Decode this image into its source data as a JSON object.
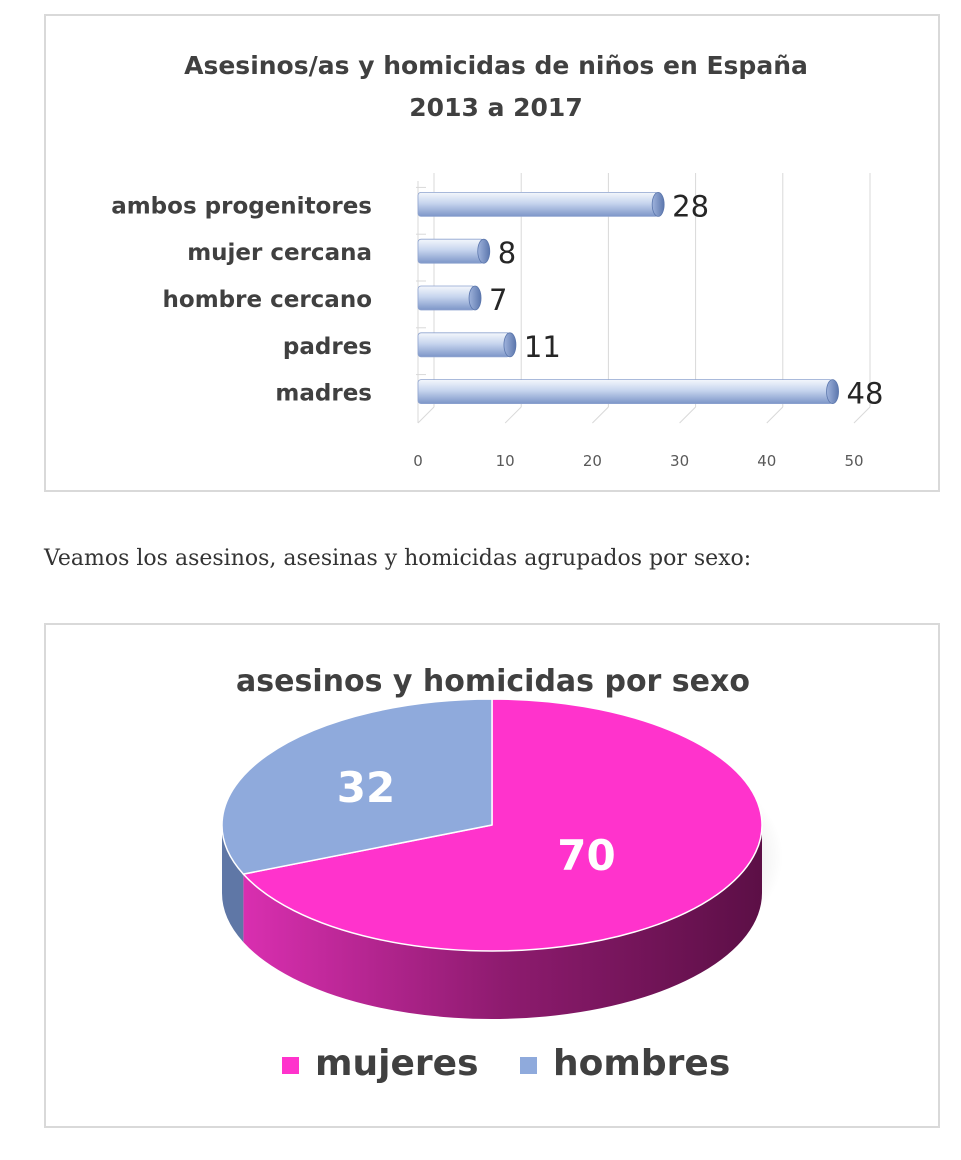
{
  "chart_data": [
    {
      "type": "bar",
      "orientation": "horizontal",
      "title_lines": [
        "Asesinos/as y homicidas de niños en España",
        "2013 a 2017"
      ],
      "categories": [
        "ambos progenitores",
        "mujer cercana",
        "hombre cercano",
        "padres",
        "madres"
      ],
      "values": [
        28,
        8,
        7,
        11,
        48
      ],
      "xlim": [
        0,
        50
      ],
      "xticks": [
        0,
        10,
        20,
        30,
        40,
        50
      ],
      "grid": true,
      "colors": {
        "bar_light": "#eef3fb",
        "bar_mid": "#b8c9ea",
        "bar_dark": "#6d88be",
        "grid": "#d9d9d9"
      }
    },
    {
      "type": "pie",
      "style": "3d",
      "title": "asesinos y homicidas por sexo",
      "slices": [
        {
          "label": "mujeres",
          "value": 70,
          "color": "#ff33cc",
          "side_color": "#a01c7f"
        },
        {
          "label": "hombres",
          "value": 32,
          "color": "#8faadc",
          "side_color": "#5f77a6"
        }
      ],
      "legend_position": "bottom"
    }
  ],
  "caption": "Veamos los asesinos, asesinas y homicidas agrupados por sexo:"
}
